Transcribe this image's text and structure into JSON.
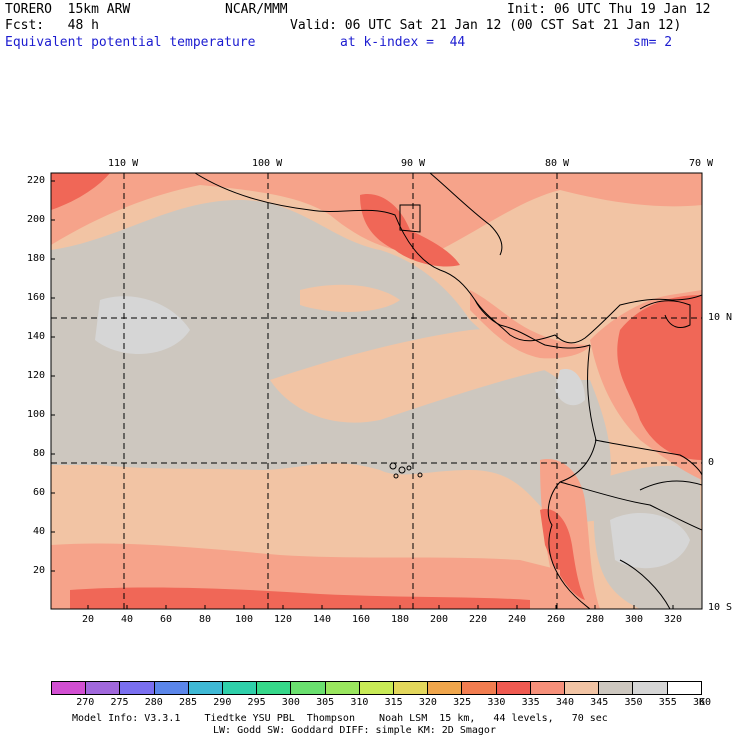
{
  "header": {
    "model": "TORERO  15km ARW",
    "org": "NCAR/MMM",
    "init": "Init: 06 UTC Thu 19 Jan 12",
    "fcst": "Fcst:   48 h",
    "valid": "Valid: 06 UTC Sat 21 Jan 12 (00 CST Sat 21 Jan 12)",
    "field": "Equivalent potential temperature",
    "level": "at k-index =  44",
    "smooth": "sm= 2"
  },
  "map": {
    "top_lon_labels": [
      "110 W",
      "100 W",
      "90 W",
      "80 W",
      "70 W"
    ],
    "right_lat_labels": [
      "10 N",
      "0",
      "10 S"
    ],
    "y_ticks": [
      "220",
      "200",
      "180",
      "160",
      "140",
      "120",
      "100",
      "80",
      "60",
      "40",
      "20"
    ],
    "x_ticks": [
      "20",
      "40",
      "60",
      "80",
      "100",
      "120",
      "140",
      "160",
      "180",
      "200",
      "220",
      "240",
      "260",
      "280",
      "300",
      "320"
    ],
    "colors": {
      "c340": "#f2c4a4",
      "c345": "#cdc7bf",
      "c335": "#f6a38a",
      "c330": "#f06757",
      "c350": "#d6d6d6",
      "land": "#000000"
    }
  },
  "colorbar": {
    "labels": [
      "270",
      "275",
      "280",
      "285",
      "290",
      "295",
      "300",
      "305",
      "310",
      "315",
      "320",
      "325",
      "330",
      "335",
      "340",
      "345",
      "350",
      "355",
      "360",
      "K"
    ],
    "colors": [
      "#d24fd2",
      "#a168dc",
      "#7a6ff0",
      "#5b86ea",
      "#3fb9d5",
      "#2fd0aa",
      "#36d88a",
      "#6ae06f",
      "#9ae65f",
      "#c8ea56",
      "#e3d75c",
      "#f0a64c",
      "#f27d50",
      "#f05a51",
      "#f6907a",
      "#f2c4a4",
      "#cdc7bf",
      "#d6d6d6",
      "#ffffff"
    ]
  },
  "footer": {
    "line1": "Model Info: V3.3.1    Tiedtke YSU PBL  Thompson    Noah LSM  15 km,   44 levels,   70 sec",
    "line2": "LW: Godd SW: Goddard DIFF: simple KM: 2D Smagor"
  }
}
